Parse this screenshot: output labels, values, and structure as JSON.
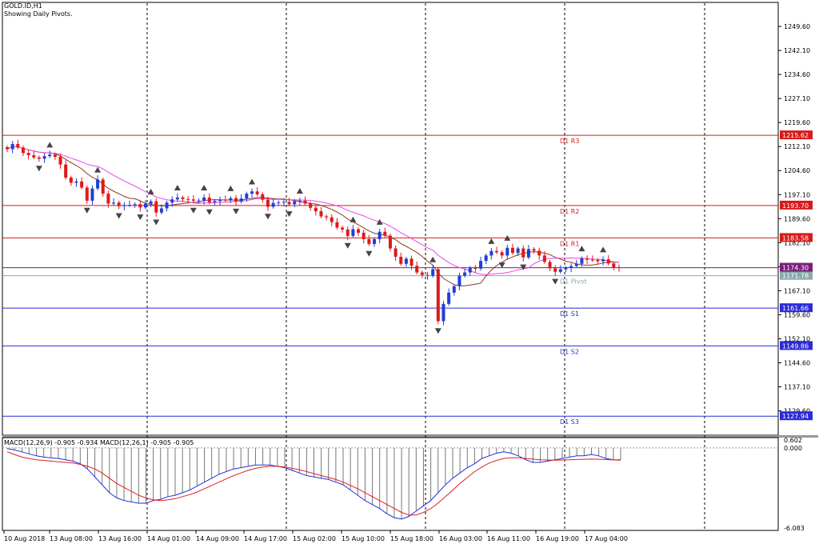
{
  "header": {
    "symbol": "GOLD.ID,H1",
    "note": "Showing Daily Pivots."
  },
  "macd_header": "MACD(12,26,9) -0.905 -0.934 MACD(12,26,1) -0.905 -0.905",
  "colors": {
    "bull": "#1f3fd6",
    "bear": "#e01818",
    "resistance": "#d61b1b",
    "support": "#2b2bd8",
    "pivot": "#8aa9ad",
    "current": "#7a1f7a",
    "ma_fast": "#8b3a1a",
    "ma_slow": "#ee44ee",
    "macd_line": "#2233dd",
    "signal_line": "#e02020",
    "histogram": "#777777"
  },
  "chart_data": [
    {
      "type": "candlestick",
      "title": "GOLD.ID,H1",
      "subtitle": "Showing Daily Pivots.",
      "ylim": [
        1122.0,
        1257.1
      ],
      "y_ticks": [
        "1249.60",
        "1242.10",
        "1234.60",
        "1227.10",
        "1219.60",
        "1212.10",
        "1204.60",
        "1197.10",
        "1189.60",
        "1182.10",
        "1174.60",
        "1167.10",
        "1159.60",
        "1152.10",
        "1144.60",
        "1137.10",
        "1129.60"
      ],
      "x_ticks": [
        "10 Aug 2018",
        "13 Aug 08:00",
        "13 Aug 16:00",
        "14 Aug 01:00",
        "14 Aug 09:00",
        "14 Aug 17:00",
        "15 Aug 02:00",
        "15 Aug 10:00",
        "15 Aug 18:00",
        "16 Aug 03:00",
        "16 Aug 11:00",
        "16 Aug 19:00",
        "17 Aug 04:00"
      ],
      "grid": "vertical dashed",
      "pivots": [
        {
          "name": "D1 R3",
          "value": 1215.62,
          "tag": "1215.62",
          "kind": "resistance"
        },
        {
          "name": "D1 R2",
          "value": 1193.7,
          "tag": "1193.70",
          "kind": "resistance"
        },
        {
          "name": "D1 R1",
          "value": 1183.58,
          "tag": "1183.58",
          "kind": "resistance"
        },
        {
          "name": "D1 Pivot",
          "value": 1171.78,
          "tag": "1171.78",
          "kind": "pivot"
        },
        {
          "name": "D1 S1",
          "value": 1161.66,
          "tag": "1161.66",
          "kind": "support"
        },
        {
          "name": "D1 S2",
          "value": 1149.86,
          "tag": "1149.86",
          "kind": "support"
        },
        {
          "name": "D1 S3",
          "value": 1127.94,
          "tag": "1127.94",
          "kind": "support"
        }
      ],
      "current_price": {
        "value": 1174.3,
        "tag": "1174.30"
      },
      "closes": [
        1211.3,
        1212.9,
        1211.8,
        1210.1,
        1209.4,
        1208.7,
        1208.3,
        1209.1,
        1209.6,
        1208.9,
        1206.5,
        1202.4,
        1200.8,
        1201.2,
        1199.3,
        1195.2,
        1199.0,
        1201.8,
        1197.4,
        1194.3,
        1194.6,
        1193.5,
        1193.8,
        1193.9,
        1194.1,
        1193.1,
        1194.2,
        1195.0,
        1191.5,
        1192.8,
        1194.6,
        1195.6,
        1196.2,
        1195.7,
        1195.6,
        1195.2,
        1195.3,
        1196.2,
        1194.7,
        1195.1,
        1195.5,
        1195.4,
        1196.0,
        1194.9,
        1195.9,
        1197.4,
        1198.1,
        1197.2,
        1195.5,
        1193.3,
        1194.5,
        1194.7,
        1194.8,
        1194.1,
        1195.0,
        1195.2,
        1194.3,
        1193.0,
        1191.9,
        1190.3,
        1190.0,
        1188.5,
        1186.8,
        1186.2,
        1184.2,
        1186.3,
        1185.2,
        1183.2,
        1181.7,
        1183.2,
        1185.5,
        1184.3,
        1180.3,
        1177.7,
        1175.5,
        1177.1,
        1174.9,
        1172.8,
        1172.0,
        1171.8,
        1173.8,
        1157.6,
        1163.0,
        1166.5,
        1168.5,
        1171.8,
        1172.8,
        1174.2,
        1174.0,
        1176.4,
        1178.1,
        1179.5,
        1179.1,
        1178.1,
        1180.5,
        1178.9,
        1180.3,
        1177.5,
        1180.1,
        1179.6,
        1178.1,
        1176.1,
        1174.1,
        1173.0,
        1173.8,
        1174.2,
        1174.8,
        1175.5,
        1177.2,
        1176.8,
        1176.7,
        1176.3,
        1176.9,
        1175.6,
        1174.4,
        1174.3
      ],
      "macd": {
        "title": "MACD(12,26,9) -0.905 -0.934 MACD(12,26,1) -0.905 -0.905",
        "ylim": [
          -6.083,
          0.602
        ],
        "y_ticks": [
          "0.602",
          "0.000",
          "-6.083"
        ],
        "histogram_values": [
          -0.05,
          -0.15,
          -0.3,
          -0.45,
          -0.6,
          -0.7,
          -0.75,
          -0.8,
          -0.9,
          -1.0,
          -1.2,
          -1.6,
          -2.2,
          -2.8,
          -3.4,
          -3.8,
          -4.0,
          -4.1,
          -4.2,
          -4.2,
          -4.0,
          -3.9,
          -3.7,
          -3.6,
          -3.4,
          -3.2,
          -2.9,
          -2.6,
          -2.3,
          -2.0,
          -1.8,
          -1.6,
          -1.5,
          -1.4,
          -1.3,
          -1.3,
          -1.3,
          -1.4,
          -1.5,
          -1.7,
          -1.9,
          -2.1,
          -2.2,
          -2.3,
          -2.4,
          -2.6,
          -2.8,
          -3.2,
          -3.6,
          -4.0,
          -4.3,
          -4.6,
          -5.0,
          -5.3,
          -5.4,
          -5.2,
          -4.8,
          -4.4,
          -4.0,
          -3.4,
          -2.8,
          -2.3,
          -1.9,
          -1.5,
          -1.2,
          -0.8,
          -0.6,
          -0.4,
          -0.3,
          -0.4,
          -0.6,
          -0.9,
          -1.1,
          -1.1,
          -1.0,
          -0.9,
          -0.8,
          -0.7,
          -0.6,
          -0.6,
          -0.5,
          -0.6,
          -0.8,
          -0.9,
          -0.905
        ],
        "macd_values": [
          -0.05,
          -0.15,
          -0.3,
          -0.45,
          -0.6,
          -0.7,
          -0.75,
          -0.8,
          -0.9,
          -1.0,
          -1.2,
          -1.6,
          -2.2,
          -2.8,
          -3.4,
          -3.8,
          -4.0,
          -4.1,
          -4.2,
          -4.2,
          -4.0,
          -3.9,
          -3.7,
          -3.6,
          -3.4,
          -3.2,
          -2.9,
          -2.6,
          -2.3,
          -2.0,
          -1.8,
          -1.6,
          -1.5,
          -1.4,
          -1.3,
          -1.3,
          -1.3,
          -1.4,
          -1.5,
          -1.7,
          -1.9,
          -2.1,
          -2.2,
          -2.3,
          -2.4,
          -2.6,
          -2.8,
          -3.2,
          -3.6,
          -4.0,
          -4.3,
          -4.6,
          -5.0,
          -5.3,
          -5.4,
          -5.2,
          -4.8,
          -4.4,
          -4.0,
          -3.4,
          -2.8,
          -2.3,
          -1.9,
          -1.5,
          -1.2,
          -0.8,
          -0.6,
          -0.4,
          -0.3,
          -0.4,
          -0.6,
          -0.9,
          -1.1,
          -1.1,
          -1.0,
          -0.9,
          -0.8,
          -0.7,
          -0.6,
          -0.6,
          -0.5,
          -0.6,
          -0.8,
          -0.9,
          -0.905
        ],
        "signal_values": [
          -0.3,
          -0.5,
          -0.7,
          -0.8,
          -0.9,
          -0.95,
          -1.0,
          -1.05,
          -1.1,
          -1.15,
          -1.25,
          -1.4,
          -1.6,
          -1.9,
          -2.3,
          -2.7,
          -3.0,
          -3.3,
          -3.6,
          -3.8,
          -3.95,
          -4.0,
          -3.95,
          -3.85,
          -3.7,
          -3.55,
          -3.35,
          -3.1,
          -2.85,
          -2.6,
          -2.35,
          -2.1,
          -1.9,
          -1.7,
          -1.55,
          -1.45,
          -1.4,
          -1.4,
          -1.45,
          -1.55,
          -1.65,
          -1.8,
          -1.95,
          -2.1,
          -2.25,
          -2.4,
          -2.6,
          -2.85,
          -3.1,
          -3.4,
          -3.7,
          -4.0,
          -4.3,
          -4.6,
          -4.9,
          -5.1,
          -5.1,
          -4.9,
          -4.6,
          -4.2,
          -3.7,
          -3.2,
          -2.7,
          -2.25,
          -1.8,
          -1.45,
          -1.15,
          -0.95,
          -0.8,
          -0.75,
          -0.75,
          -0.8,
          -0.85,
          -0.9,
          -0.92,
          -0.93,
          -0.92,
          -0.9,
          -0.88,
          -0.86,
          -0.85,
          -0.86,
          -0.88,
          -0.91,
          -0.934
        ]
      }
    }
  ]
}
